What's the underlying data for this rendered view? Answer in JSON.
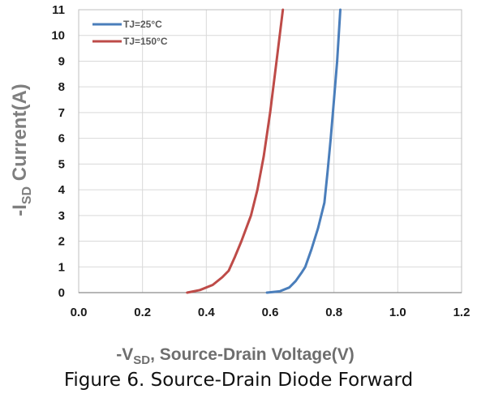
{
  "figure_caption": "Figure 6. Source-Drain Diode Forward",
  "chart_data": {
    "type": "line",
    "ylabel_main": "-I",
    "ylabel_sub": "SD",
    "ylabel_rest": " Current(A)",
    "xlabel_main": "-V",
    "xlabel_sub": "SD",
    "xlabel_rest": ", Source-Drain Voltage(V)",
    "xlim": [
      0.0,
      1.2
    ],
    "ylim": [
      0,
      11
    ],
    "x_ticks": [
      "0.0",
      "0.2",
      "0.4",
      "0.6",
      "0.8",
      "1.0",
      "1.2"
    ],
    "y_ticks": [
      "0",
      "1",
      "2",
      "3",
      "4",
      "5",
      "6",
      "7",
      "8",
      "9",
      "10",
      "11"
    ],
    "grid": true,
    "legend_position": "top-left",
    "series": [
      {
        "name": "TJ=25°C",
        "color": "#4a7ebb",
        "x": [
          0.59,
          0.63,
          0.66,
          0.68,
          0.7,
          0.71,
          0.73,
          0.75,
          0.77,
          0.78,
          0.79,
          0.8,
          0.81,
          0.82
        ],
        "y": [
          0,
          0.05,
          0.2,
          0.45,
          0.8,
          1.0,
          1.7,
          2.5,
          3.5,
          4.7,
          6.0,
          7.5,
          9.0,
          11
        ]
      },
      {
        "name": "TJ=150°C",
        "color": "#be4b48",
        "x": [
          0.34,
          0.38,
          0.42,
          0.45,
          0.47,
          0.49,
          0.51,
          0.54,
          0.56,
          0.58,
          0.6,
          0.62,
          0.64
        ],
        "y": [
          0,
          0.1,
          0.3,
          0.6,
          0.85,
          1.4,
          2.0,
          3.0,
          4.0,
          5.3,
          7.0,
          9.0,
          11
        ]
      }
    ]
  }
}
